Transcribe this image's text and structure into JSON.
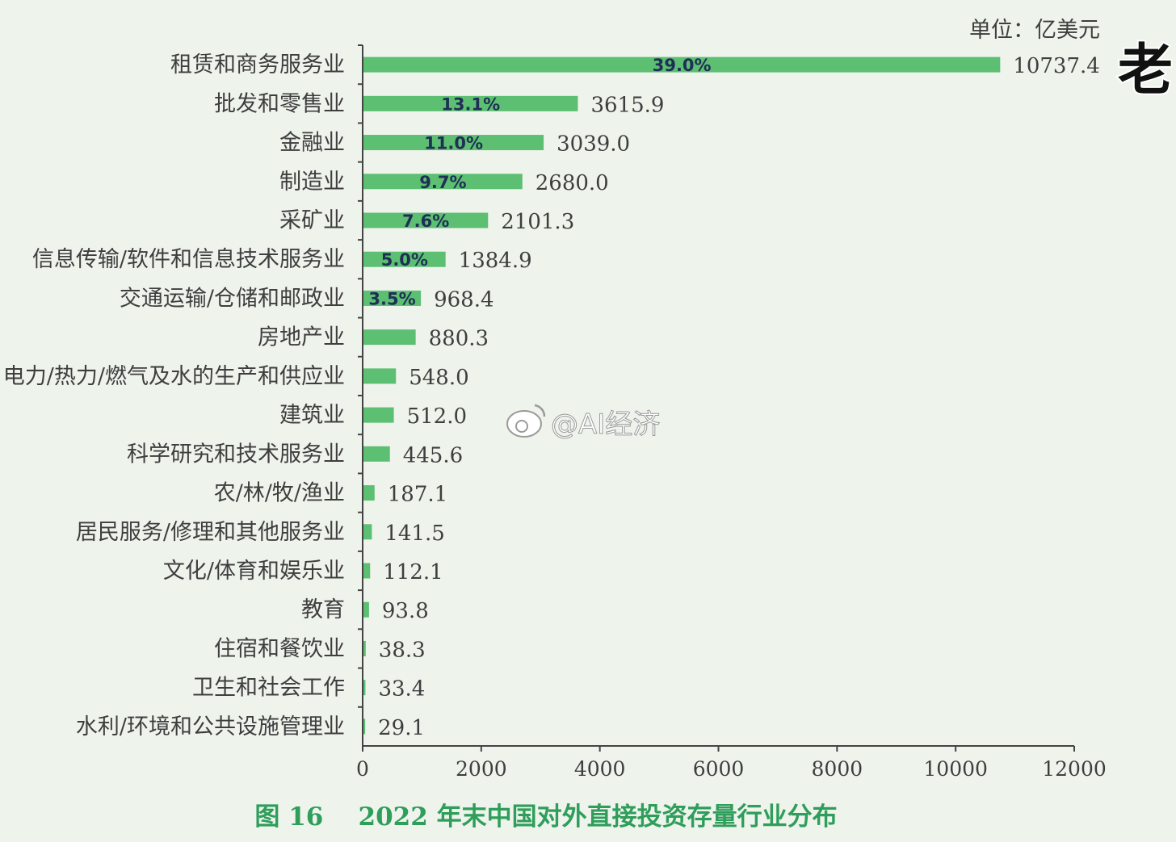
{
  "chart_data": {
    "type": "bar",
    "orientation": "horizontal",
    "unit_label": "单位：亿美元",
    "caption": "图 16    2022 年末中国对外直接投资存量行业分布",
    "categories": [
      "租赁和商务服务业",
      "批发和零售业",
      "金融业",
      "制造业",
      "采矿业",
      "信息传输/软件和信息技术服务业",
      "交通运输/仓储和邮政业",
      "房地产业",
      "电力/热力/燃气及水的生产和供应业",
      "建筑业",
      "科学研究和技术服务业",
      "农/林/牧/渔业",
      "居民服务/修理和其他服务业",
      "文化/体育和娱乐业",
      "教育",
      "住宿和餐饮业",
      "卫生和社会工作",
      "水利/环境和公共设施管理业"
    ],
    "values": [
      10737.4,
      3615.9,
      3039.0,
      2680.0,
      2101.3,
      1384.9,
      968.4,
      880.3,
      548.0,
      512.0,
      445.6,
      187.1,
      141.5,
      112.1,
      93.8,
      38.3,
      33.4,
      29.1
    ],
    "value_labels": [
      "10737.4",
      "3615.9",
      "3039.0",
      "2680.0",
      "2101.3",
      "1384.9",
      "968.4",
      "880.3",
      "548.0",
      "512.0",
      "445.6",
      "187.1",
      "141.5",
      "112.1",
      "93.8",
      "38.3",
      "33.4",
      "29.1"
    ],
    "percent_labels": [
      "39.0%",
      "13.1%",
      "11.0%",
      "9.7%",
      "7.6%",
      "5.0%",
      "3.5%"
    ],
    "xlim": [
      0,
      12000
    ],
    "xticks": [
      "0",
      "2000",
      "4000",
      "6000",
      "8000",
      "10000",
      "12000"
    ],
    "grid": false,
    "colors": {
      "bar": "#5cbf72",
      "caption": "#2e9e5a",
      "percent": "#1f2f55",
      "background": "#eef3ec"
    }
  },
  "watermark": "@AI经济",
  "corner_char": "老"
}
